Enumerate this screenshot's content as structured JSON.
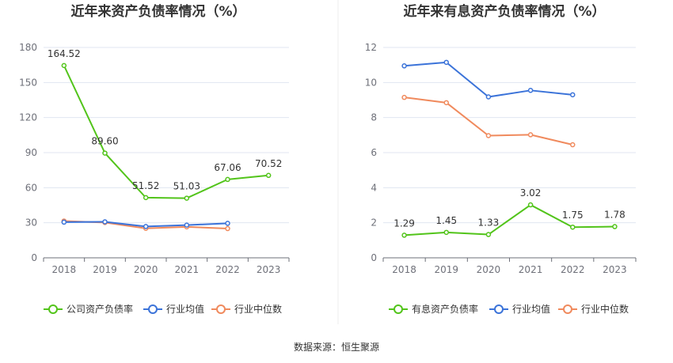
{
  "source": "数据来源：恒生聚源",
  "chart_data": [
    {
      "type": "line",
      "title": "近年来资产负债率情况（%）",
      "categories": [
        "2018",
        "2019",
        "2020",
        "2021",
        "2022",
        "2023"
      ],
      "ylim": [
        0,
        180
      ],
      "yticks": [
        0,
        30,
        60,
        90,
        120,
        150,
        180
      ],
      "grid": true,
      "legend_position": "bottom",
      "series": [
        {
          "name": "公司资产负债率",
          "color": "#52c41a",
          "values": [
            164.52,
            89.6,
            51.52,
            51.03,
            67.06,
            70.52
          ],
          "labels": [
            "164.52",
            "89.60",
            "51.52",
            "51.03",
            "67.06",
            "70.52"
          ]
        },
        {
          "name": "行业均值",
          "color": "#3b73d9",
          "values": [
            30.5,
            30.8,
            26.8,
            28.0,
            29.5,
            null
          ]
        },
        {
          "name": "行业中位数",
          "color": "#f08a5d",
          "values": [
            31.5,
            30.2,
            25.2,
            26.5,
            25.0,
            null
          ]
        }
      ]
    },
    {
      "type": "line",
      "title": "近年来有息资产负债率情况（%）",
      "categories": [
        "2018",
        "2019",
        "2020",
        "2021",
        "2022",
        "2023"
      ],
      "ylim": [
        0,
        12
      ],
      "yticks": [
        0,
        2,
        4,
        6,
        8,
        10,
        12
      ],
      "grid": true,
      "legend_position": "bottom",
      "series": [
        {
          "name": "有息资产负债率",
          "color": "#52c41a",
          "values": [
            1.29,
            1.45,
            1.33,
            3.02,
            1.75,
            1.78
          ],
          "labels": [
            "1.29",
            "1.45",
            "1.33",
            "3.02",
            "1.75",
            "1.78"
          ]
        },
        {
          "name": "行业均值",
          "color": "#3b73d9",
          "values": [
            10.95,
            11.15,
            9.18,
            9.55,
            9.3,
            null
          ]
        },
        {
          "name": "行业中位数",
          "color": "#f08a5d",
          "values": [
            9.15,
            8.85,
            6.97,
            7.02,
            6.45,
            null
          ]
        }
      ]
    }
  ]
}
